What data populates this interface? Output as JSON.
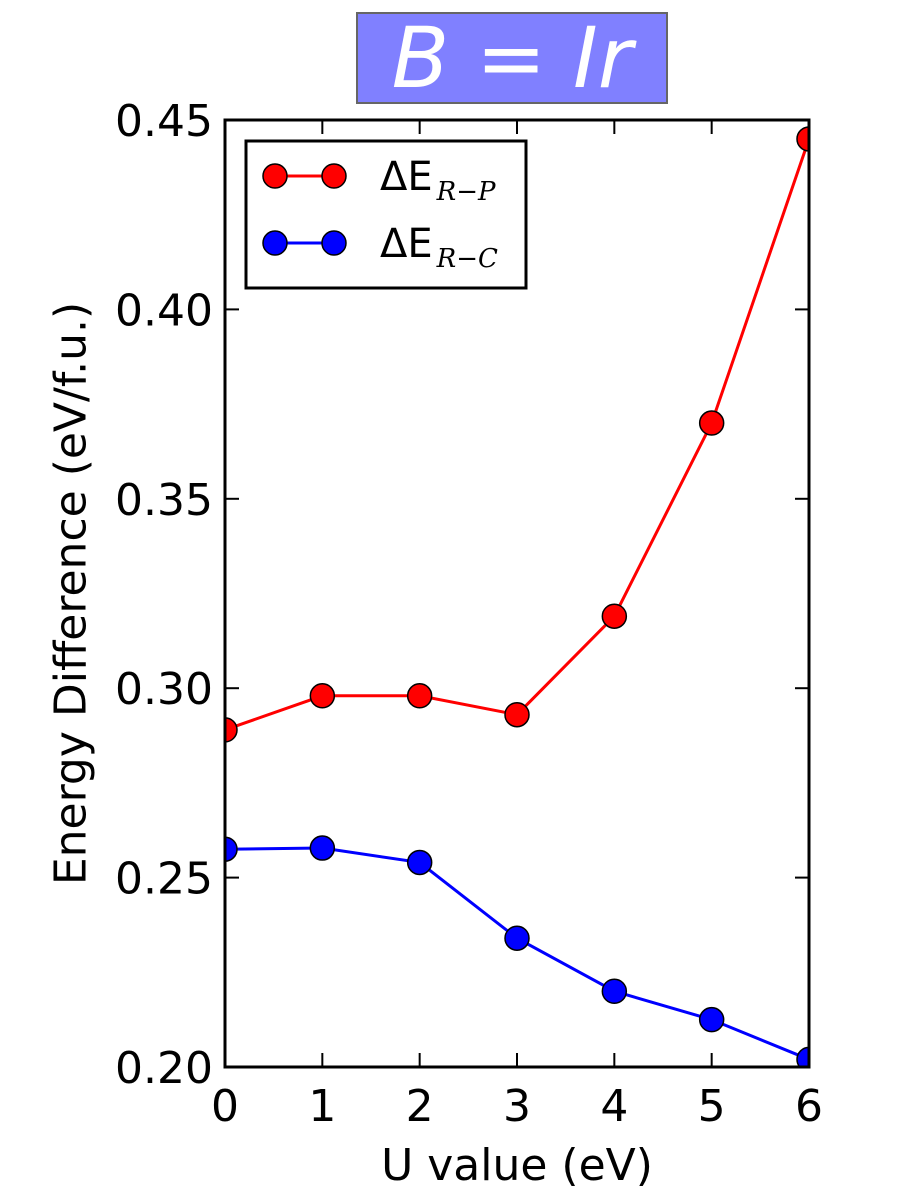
{
  "chart_data": {
    "type": "line",
    "title": "B = Ir",
    "xlabel": "U value (eV)",
    "ylabel": "Energy Difference (eV/f.u.)",
    "x": [
      0,
      1,
      2,
      3,
      4,
      5,
      6
    ],
    "xlim": [
      0,
      6
    ],
    "ylim": [
      0.2,
      0.45
    ],
    "xticks": [
      "0",
      "1",
      "2",
      "3",
      "4",
      "5",
      "6"
    ],
    "yticks": [
      "0.20",
      "0.25",
      "0.30",
      "0.35",
      "0.40",
      "0.45"
    ],
    "grid": false,
    "legend_position": "top-left",
    "series": [
      {
        "name_base": "ΔE",
        "name_sub": "R−P",
        "color": "#ff0000",
        "values": [
          0.289,
          0.298,
          0.298,
          0.293,
          0.319,
          0.37,
          0.445
        ]
      },
      {
        "name_base": "ΔE",
        "name_sub": "R−C",
        "color": "#0000ff",
        "values": [
          0.2575,
          0.2578,
          0.254,
          0.234,
          0.22,
          0.2125,
          0.202
        ]
      }
    ]
  }
}
